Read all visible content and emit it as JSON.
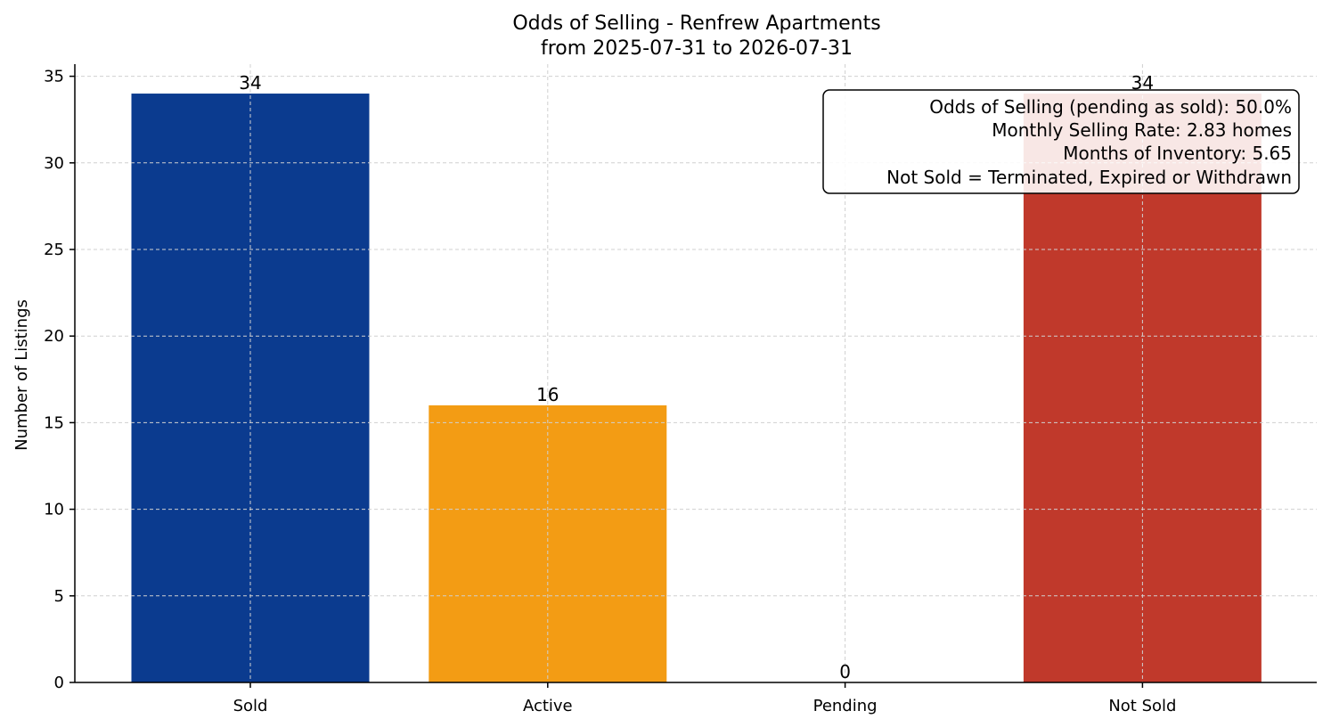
{
  "chart_data": {
    "type": "bar",
    "title": "Odds of Selling - Renfrew Apartments",
    "subtitle": "from 2025-07-31 to 2026-07-31",
    "xlabel": "",
    "ylabel": "Number of Listings",
    "categories": [
      "Sold",
      "Active",
      "Pending",
      "Not Sold"
    ],
    "values": [
      34,
      16,
      0,
      34
    ],
    "colors": [
      "#0b3b8f",
      "#f39c14",
      "#2e8b57",
      "#c0392b"
    ],
    "data_labels": [
      "34",
      "16",
      "0",
      "34"
    ],
    "ylim": [
      0,
      35.7
    ],
    "yticks": [
      0,
      5,
      10,
      15,
      20,
      25,
      30,
      35
    ],
    "grid": true,
    "annotation": {
      "placement": "top-right",
      "lines": [
        "Odds of Selling (pending as sold): 50.0%",
        "Monthly Selling Rate: 2.83 homes",
        "Months of Inventory: 5.65",
        "Not Sold = Terminated, Expired or Withdrawn"
      ]
    }
  }
}
